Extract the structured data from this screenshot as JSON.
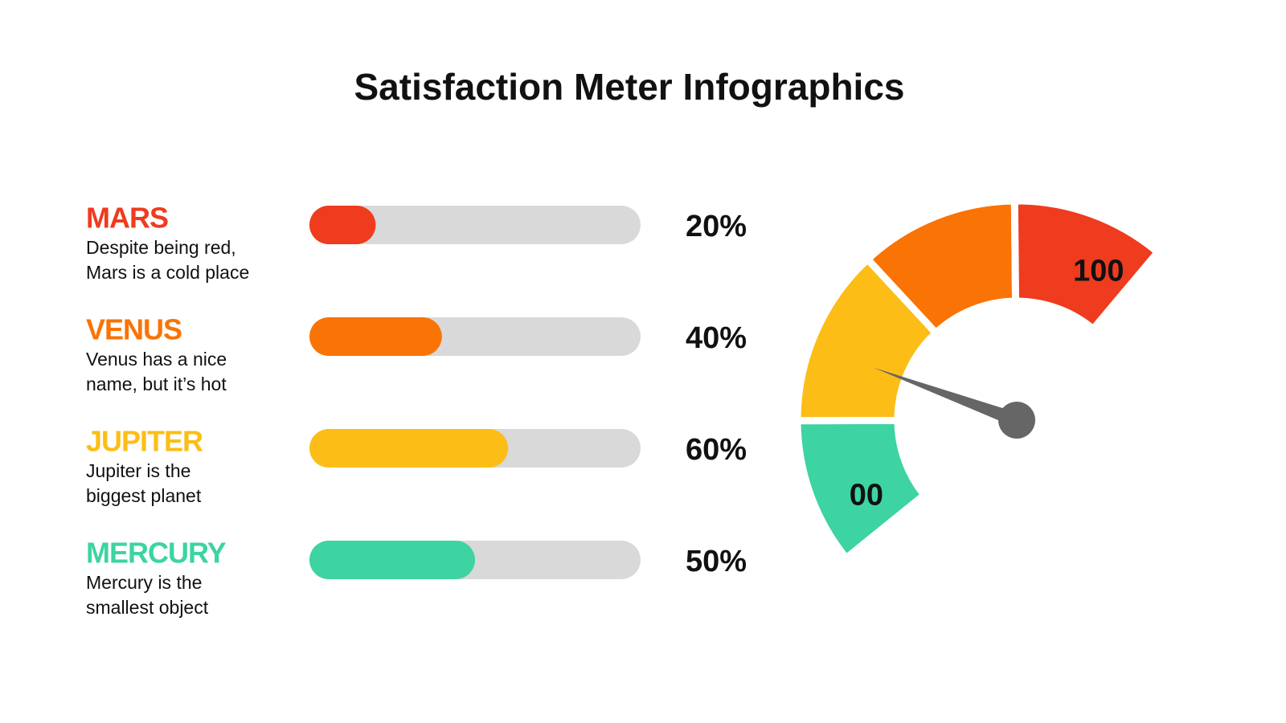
{
  "title": "Satisfaction Meter Infographics",
  "chart_data": [
    {
      "type": "progress",
      "categories": [
        "MARS",
        "VENUS",
        "JUPITER",
        "MERCURY"
      ],
      "descriptions": [
        [
          "Despite being red,",
          "Mars is a cold place"
        ],
        [
          "Venus has a nice",
          "name, but it’s hot"
        ],
        [
          "Jupiter is the",
          "biggest planet"
        ],
        [
          "Mercury is the",
          "smallest object"
        ]
      ],
      "values": [
        20,
        40,
        60,
        50
      ],
      "value_labels": [
        "20%",
        "40%",
        "60%",
        "50%"
      ],
      "colors": [
        "#ef3b1e",
        "#fa7305",
        "#fcbd16",
        "#3dd3a2"
      ],
      "track_color": "#d9d9d9",
      "xlim": [
        0,
        100
      ]
    },
    {
      "type": "gauge",
      "value": 35,
      "ylim": [
        0,
        100
      ],
      "yticks": [
        {
          "value": 0,
          "label": "00"
        },
        100
      ],
      "bands": [
        {
          "from": 0,
          "to": 23,
          "color": "#3dd3a2"
        },
        {
          "from": 23,
          "to": 51,
          "color": "#fcbd16"
        },
        {
          "from": 51,
          "to": 76,
          "color": "#fa7305"
        },
        {
          "from": 76,
          "to": 100,
          "color": "#ef3b1e"
        }
      ],
      "needle_color": "#666666"
    }
  ]
}
